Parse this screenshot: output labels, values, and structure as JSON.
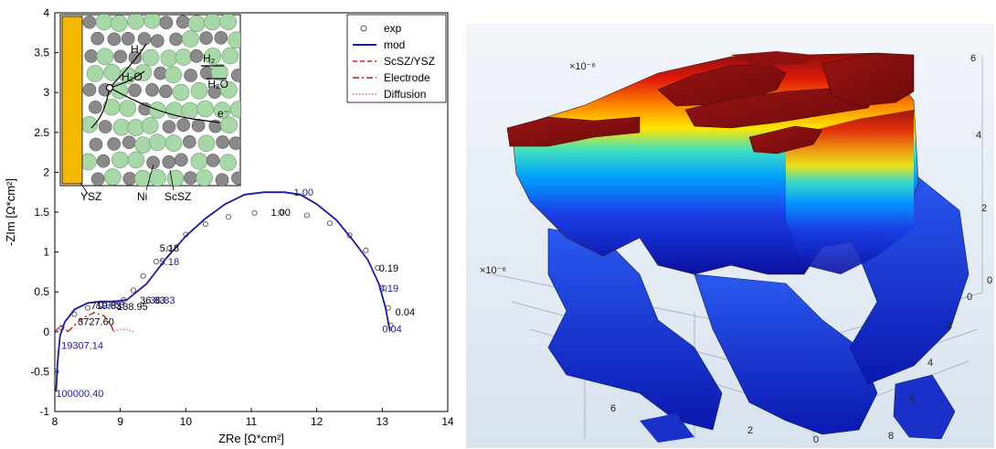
{
  "chart_data": [
    {
      "type": "scatter",
      "xlabel": "ZRe [Ω*cm²]",
      "ylabel": "-ZIm [Ω*cm²]",
      "xlim": [
        8,
        14
      ],
      "ylim": [
        -1,
        4
      ],
      "xticks": [
        "8",
        "9",
        "10",
        "11",
        "12",
        "13",
        "14"
      ],
      "yticks": [
        "-1",
        "-0.5",
        "0",
        "0.5",
        "1",
        "1.5",
        "2",
        "2.5",
        "3",
        "3.5",
        "4"
      ],
      "legend_position": "top-right",
      "legend": [
        "exp",
        "mod",
        "ScSZ/YSZ",
        "Electrode",
        "Diffusion"
      ],
      "series": [
        {
          "name": "exp",
          "style": "circle",
          "color": "#555555",
          "x": [
            8.02,
            8.1,
            8.3,
            8.5,
            8.7,
            8.9,
            9.05,
            9.2,
            9.35,
            9.55,
            9.75,
            10.0,
            10.3,
            10.65,
            11.05,
            11.45,
            11.85,
            12.2,
            12.5,
            12.75,
            12.93,
            13.03,
            13.09,
            13.13
          ],
          "y": [
            -0.5,
            0.05,
            0.22,
            0.3,
            0.34,
            0.36,
            0.4,
            0.52,
            0.7,
            0.88,
            1.05,
            1.22,
            1.35,
            1.44,
            1.49,
            1.5,
            1.46,
            1.36,
            1.21,
            1.02,
            0.8,
            0.55,
            0.3,
            0.08
          ]
        },
        {
          "name": "mod",
          "style": "line",
          "color": "#1a1aa6",
          "x": [
            8.02,
            8.04,
            8.08,
            8.15,
            8.3,
            8.5,
            8.7,
            8.9,
            9.1,
            9.4,
            9.7,
            10.0,
            10.3,
            10.6,
            10.9,
            11.2,
            11.5,
            11.75,
            12.0,
            12.3,
            12.55,
            12.78,
            12.95,
            13.05,
            13.1,
            13.12
          ],
          "y": [
            -0.75,
            -0.4,
            -0.05,
            0.12,
            0.28,
            0.36,
            0.38,
            0.38,
            0.4,
            0.6,
            0.92,
            1.2,
            1.42,
            1.6,
            1.72,
            1.75,
            1.75,
            1.72,
            1.6,
            1.4,
            1.15,
            0.9,
            0.6,
            0.3,
            0.08,
            0.01
          ]
        },
        {
          "name": "ScSZ/YSZ",
          "style": "dashed",
          "color": "#d21a1a",
          "x": [
            8.01,
            8.05,
            8.1,
            8.15,
            8.2
          ],
          "y": [
            0.0,
            0.05,
            0.07,
            0.05,
            0.0
          ]
        },
        {
          "name": "Electrode",
          "style": "dashdot",
          "color": "#c41a1a",
          "x": [
            8.2,
            8.4,
            8.6,
            8.75,
            8.85,
            8.9
          ],
          "y": [
            0.0,
            0.16,
            0.24,
            0.2,
            0.1,
            0.0
          ]
        },
        {
          "name": "Diffusion",
          "style": "dotted",
          "color": "#e07070",
          "x": [
            8.9,
            9.0,
            9.1,
            9.2
          ],
          "y": [
            0.0,
            0.03,
            0.03,
            0.0
          ]
        }
      ],
      "annotations": [
        {
          "text": "1.00",
          "x": 11.3,
          "y": 1.5,
          "color": "#000000"
        },
        {
          "text": "1.00",
          "x": 11.65,
          "y": 1.75,
          "color": "#1a1aa6"
        },
        {
          "text": "5.18",
          "x": 9.6,
          "y": 1.05,
          "color": "#000000"
        },
        {
          "text": "5.18",
          "x": 9.6,
          "y": 0.88,
          "color": "#1a1aa6"
        },
        {
          "text": "0.19",
          "x": 12.95,
          "y": 0.8,
          "color": "#000000"
        },
        {
          "text": "0.19",
          "x": 12.95,
          "y": 0.55,
          "color": "#1a1aa6"
        },
        {
          "text": "0.04",
          "x": 13.2,
          "y": 0.25,
          "color": "#000000"
        },
        {
          "text": "0.04",
          "x": 13.0,
          "y": 0.04,
          "color": "#1a1aa6"
        },
        {
          "text": "36.83",
          "x": 9.3,
          "y": 0.4,
          "color": "#000000"
        },
        {
          "text": "36.83",
          "x": 9.45,
          "y": 0.4,
          "color": "#1a1aa6"
        },
        {
          "text": "719.63",
          "x": 8.55,
          "y": 0.33,
          "color": "#000000"
        },
        {
          "text": "719.63",
          "x": 8.6,
          "y": 0.34,
          "color": "#1a1aa6"
        },
        {
          "text": "138.95",
          "x": 8.95,
          "y": 0.32,
          "color": "#000000"
        },
        {
          "text": "3727.60",
          "x": 8.35,
          "y": 0.13,
          "color": "#000000"
        },
        {
          "text": "19307.14",
          "x": 8.1,
          "y": -0.17,
          "color": "#1a1aa6"
        },
        {
          "text": "100000.40",
          "x": 8.02,
          "y": -0.77,
          "color": "#1a1aa6"
        }
      ],
      "inset": {
        "labels": [
          "H₂",
          "H₂O",
          "H₂",
          "H₂O",
          "e⁻",
          "YSZ",
          "Ni",
          "ScSZ"
        ],
        "colors": {
          "ysz": "#f5b800",
          "ni": "#8a8a8a",
          "scsz": "#a8d8a8"
        }
      }
    },
    {
      "type": "3d-surface",
      "labels": [
        "×10⁻⁶",
        "×10⁻⁶"
      ],
      "axis_right_ticks": [
        "6",
        "4",
        "2",
        "0"
      ],
      "axis_front_ticks": [
        "6",
        "4",
        "2",
        "0"
      ],
      "axis_depth_ticks": [
        "0",
        "2",
        "4",
        "6",
        "8"
      ],
      "colormap": "jet"
    }
  ]
}
